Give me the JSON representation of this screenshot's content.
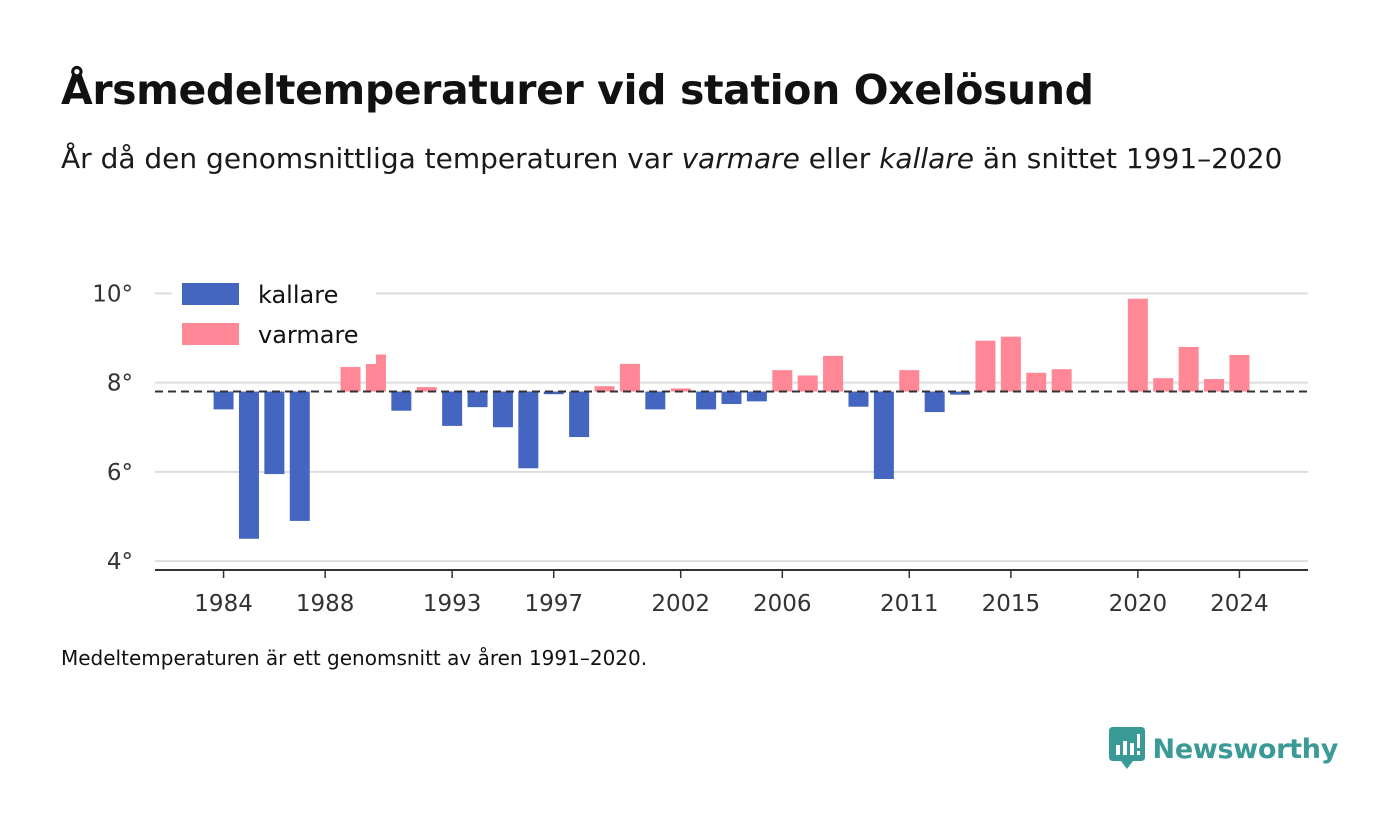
{
  "header": {
    "title": "Årsmedeltemperaturer vid station Oxelösund",
    "subtitle_part1": "År då den genomsnittliga temperaturen var ",
    "subtitle_warm": "varmare",
    "subtitle_part2": " eller ",
    "subtitle_cold": "kallare",
    "subtitle_part3": " än snittet 1991–2020"
  },
  "footer": {
    "note": "Medeltemperaturen är ett genomsnitt av åren 1991–2020.",
    "brand": "Newsworthy"
  },
  "colors": {
    "cold": "#4466c0",
    "warm": "#ff8796",
    "brand": "#3a9a96",
    "grid": "#dddddd",
    "baseline": "#333333"
  },
  "chart_data": {
    "type": "bar",
    "baseline": 7.8,
    "baseline_style": "dashed",
    "ylim": [
      3.8,
      10.3
    ],
    "yticks": [
      4,
      6,
      8,
      10
    ],
    "ytick_labels": [
      "4°",
      "6°",
      "8°",
      "10°"
    ],
    "xlim": [
      1981.3,
      2026.7
    ],
    "xticks": [
      1984,
      1988,
      1993,
      1997,
      2002,
      2006,
      2011,
      2015,
      2020,
      2024
    ],
    "xtick_labels": [
      "1984",
      "1988",
      "1993",
      "1997",
      "2002",
      "2006",
      "2011",
      "2015",
      "2020",
      "2024"
    ],
    "grid": true,
    "legend": {
      "placement": "top-left",
      "items": [
        {
          "key": "cold",
          "label": "kallare"
        },
        {
          "key": "warm",
          "label": "varmare"
        }
      ]
    },
    "years": [
      1984,
      1985,
      1986,
      1987,
      1989,
      1990,
      1991,
      1992,
      1993,
      1994,
      1995,
      1996,
      1997,
      1998,
      1999,
      2000,
      2001,
      2002,
      2003,
      2004,
      2005,
      2006,
      2007,
      2008,
      2009,
      2010,
      2011,
      2012,
      2013,
      2014,
      2015,
      2016,
      2017,
      2020,
      2021,
      2022,
      2023,
      2024
    ],
    "values": [
      7.4,
      4.5,
      5.95,
      4.9,
      8.35,
      8.63,
      7.37,
      7.9,
      7.03,
      7.45,
      7.0,
      6.08,
      7.74,
      6.78,
      7.92,
      8.42,
      7.4,
      7.87,
      7.4,
      7.52,
      7.58,
      8.28,
      8.16,
      8.6,
      7.46,
      5.84,
      8.28,
      7.34,
      7.73,
      8.94,
      9.03,
      8.22,
      8.3,
      9.88,
      8.1,
      8.8,
      8.08,
      8.62
    ]
  }
}
